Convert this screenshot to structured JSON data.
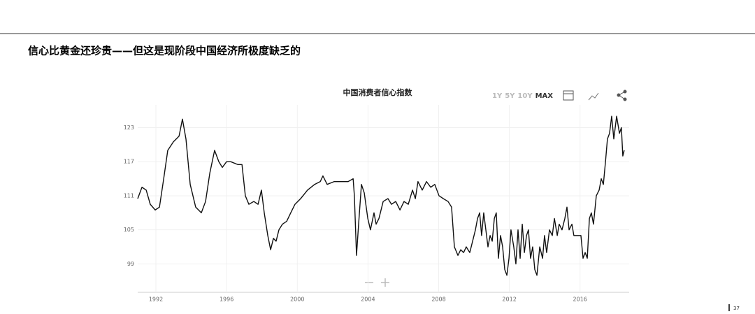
{
  "header": {
    "title": "信心比黄金还珍贵——但这是现阶段中国经济所极度缺乏的"
  },
  "controls": [
    "1Y",
    "5Y",
    "10Y",
    "MAX"
  ],
  "page_number": "37",
  "chart_data": {
    "type": "line",
    "title": "中国消费者信心指数",
    "color": "#111111",
    "grid": true,
    "xlim": [
      1990.97,
      2018.78
    ],
    "xticks": [
      1992,
      1996,
      2000,
      2004,
      2008,
      2012,
      2016
    ],
    "ylim": [
      94,
      127
    ],
    "yticks": [
      99,
      105,
      111,
      117,
      123
    ],
    "x": [
      1990.97,
      1991.21,
      1991.45,
      1991.68,
      1991.96,
      1992.2,
      1992.44,
      1992.67,
      1992.99,
      1993.31,
      1993.5,
      1993.7,
      1993.94,
      1994.25,
      1994.57,
      1994.81,
      1995.05,
      1995.32,
      1995.56,
      1995.76,
      1996.0,
      1996.23,
      1996.63,
      1996.87,
      1997.06,
      1997.26,
      1997.54,
      1997.78,
      1997.97,
      1998.13,
      1998.33,
      1998.49,
      1998.65,
      1998.8,
      1998.96,
      1999.16,
      1999.4,
      1999.63,
      1999.87,
      2000.19,
      2000.58,
      2000.98,
      2001.3,
      2001.45,
      2001.69,
      2002.09,
      2002.48,
      2002.88,
      2003.16,
      2003.23,
      2003.35,
      2003.47,
      2003.63,
      2003.79,
      2003.99,
      2004.14,
      2004.34,
      2004.46,
      2004.62,
      2004.86,
      2005.13,
      2005.33,
      2005.57,
      2005.81,
      2006.04,
      2006.28,
      2006.52,
      2006.68,
      2006.83,
      2007.07,
      2007.31,
      2007.55,
      2007.78,
      2008.02,
      2008.26,
      2008.53,
      2008.73,
      2008.89,
      2009.09,
      2009.25,
      2009.41,
      2009.56,
      2009.76,
      2009.92,
      2010.08,
      2010.2,
      2010.32,
      2010.43,
      2010.55,
      2010.67,
      2010.79,
      2010.91,
      2011.03,
      2011.15,
      2011.26,
      2011.38,
      2011.5,
      2011.62,
      2011.74,
      2011.86,
      2011.98,
      2012.09,
      2012.25,
      2012.37,
      2012.49,
      2012.61,
      2012.73,
      2012.85,
      2012.97,
      2013.08,
      2013.2,
      2013.32,
      2013.44,
      2013.56,
      2013.72,
      2013.88,
      2013.99,
      2014.11,
      2014.27,
      2014.43,
      2014.55,
      2014.71,
      2014.82,
      2014.98,
      2015.14,
      2015.26,
      2015.38,
      2015.54,
      2015.65,
      2015.85,
      2016.05,
      2016.17,
      2016.29,
      2016.41,
      2016.53,
      2016.64,
      2016.76,
      2016.92,
      2017.08,
      2017.2,
      2017.32,
      2017.44,
      2017.55,
      2017.67,
      2017.79,
      2017.91,
      2018.07,
      2018.23,
      2018.34,
      2018.42,
      2018.5
    ],
    "values": [
      110.5,
      112.5,
      112,
      109.5,
      108.5,
      109,
      114,
      119,
      120.5,
      121.5,
      124.5,
      121,
      113,
      109,
      108,
      110,
      115,
      119,
      117,
      116,
      117,
      117,
      116.5,
      116.5,
      111,
      109.5,
      110,
      109.5,
      112,
      108,
      104,
      101.5,
      103.5,
      103,
      105,
      106,
      106.5,
      108,
      109.5,
      110.5,
      112,
      113,
      113.5,
      114.5,
      113,
      113.5,
      113.5,
      113.5,
      114,
      111,
      100.5,
      106,
      113,
      111.5,
      107,
      105,
      108,
      106,
      107,
      110,
      110.5,
      109.5,
      110,
      108.5,
      110,
      109.5,
      112,
      110.5,
      113.5,
      112,
      113.5,
      112.5,
      113,
      111,
      110.5,
      110,
      109,
      102,
      100.5,
      101.5,
      101,
      102,
      101,
      103,
      105,
      107,
      108,
      104,
      108,
      105,
      102,
      104,
      103,
      107,
      108,
      100,
      104,
      102,
      98,
      97,
      100,
      105,
      102,
      99,
      105,
      100,
      106,
      101,
      104,
      105,
      100,
      102,
      98,
      97,
      102,
      100,
      104,
      101,
      105,
      104,
      107,
      104,
      106,
      105,
      107,
      109,
      105,
      106,
      104,
      104,
      104,
      100,
      101,
      100,
      107,
      108,
      106,
      111,
      112,
      114,
      113,
      117,
      121,
      122,
      125,
      121,
      125,
      122,
      123,
      118,
      119
    ]
  }
}
